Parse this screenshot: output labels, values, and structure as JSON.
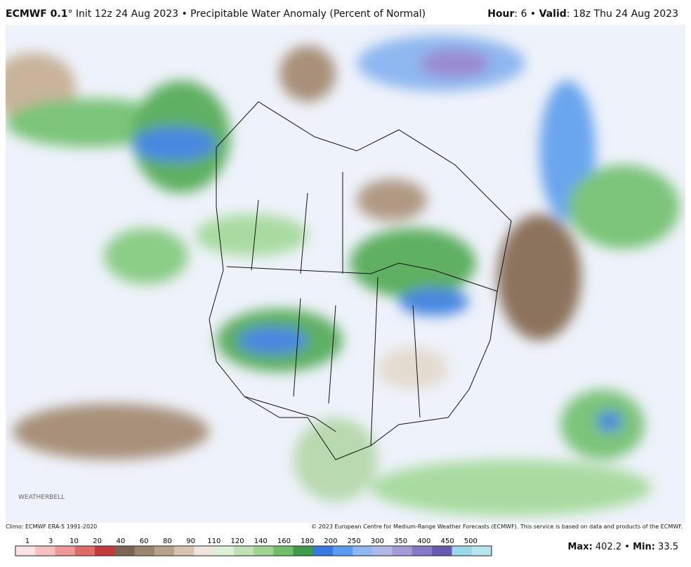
{
  "header": {
    "model": "ECMWF 0.1",
    "degree": "°",
    "title": " Init 12z 24 Aug 2023 • Precipitable Water Anomaly (Percent of Normal)",
    "hour_label": "Hour",
    "hour": ": 6 • ",
    "valid_label": "Valid",
    "valid": ": 18z Thu 24 Aug 2023"
  },
  "footer": {
    "climo": "Climo: ECMWF ERA-5 1991-2020",
    "copyright": "© 2023 European Centre for Medium-Range Weather Forecasts (ECMWF). This service is based on data and products of the ECMWF.",
    "watermark": "WEATHERBELL",
    "max_label": "Max:",
    "max": " 402.2 • ",
    "min_label": "Min:",
    "min": " 33.5"
  },
  "colorbar": {
    "labels": [
      "1",
      "3",
      "10",
      "20",
      "40",
      "60",
      "80",
      "90",
      "110",
      "120",
      "140",
      "160",
      "180",
      "200",
      "250",
      "300",
      "350",
      "400",
      "450",
      "500"
    ],
    "colors": [
      "#fbe3e3",
      "#f7c0c0",
      "#ee9a9a",
      "#e06b6b",
      "#c23a3a",
      "#7d6555",
      "#9b8570",
      "#b9a28a",
      "#d6c4ad",
      "#eee6dc",
      "#ddf0d8",
      "#bfe3b5",
      "#9fd493",
      "#72be6b",
      "#3f9a4a",
      "#3a78e0",
      "#5a9af0",
      "#8fb8f0",
      "#b0b8e8",
      "#a39ad8",
      "#8677c8",
      "#6b58b0",
      "#9ad8e8",
      "#b8e4f0"
    ]
  }
}
